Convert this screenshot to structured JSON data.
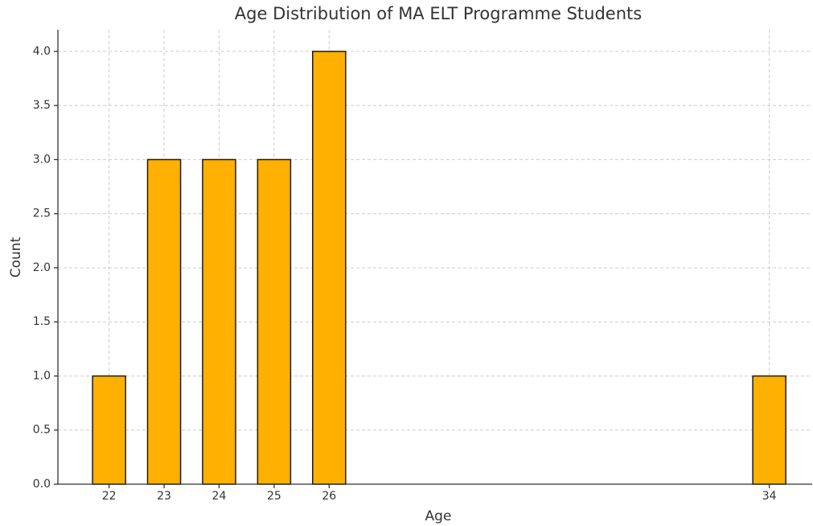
{
  "chart_data": {
    "type": "bar",
    "title": "Age Distribution of MA ELT Programme Students",
    "xlabel": "Age",
    "ylabel": "Count",
    "x": [
      22,
      23,
      24,
      25,
      26,
      34
    ],
    "values": [
      1,
      3,
      3,
      3,
      4,
      1
    ],
    "color": "#ffb000",
    "edgecolor": "#1a1a1a",
    "xlim": [
      21.07,
      34.78
    ],
    "xticks": [
      22,
      23,
      24,
      25,
      26,
      34
    ],
    "ylim": [
      0,
      4.2
    ],
    "yticks": [
      {
        "value": 0,
        "label": "0.0"
      },
      {
        "value": 0.5,
        "label": "0.5"
      },
      {
        "value": 1,
        "label": "1.0"
      },
      {
        "value": 1.5,
        "label": "1.5"
      },
      {
        "value": 2,
        "label": "2.0"
      },
      {
        "value": 2.5,
        "label": "2.5"
      },
      {
        "value": 3,
        "label": "3.0"
      },
      {
        "value": 3.5,
        "label": "3.5"
      },
      {
        "value": 4,
        "label": "4.0"
      }
    ],
    "grid": true
  }
}
